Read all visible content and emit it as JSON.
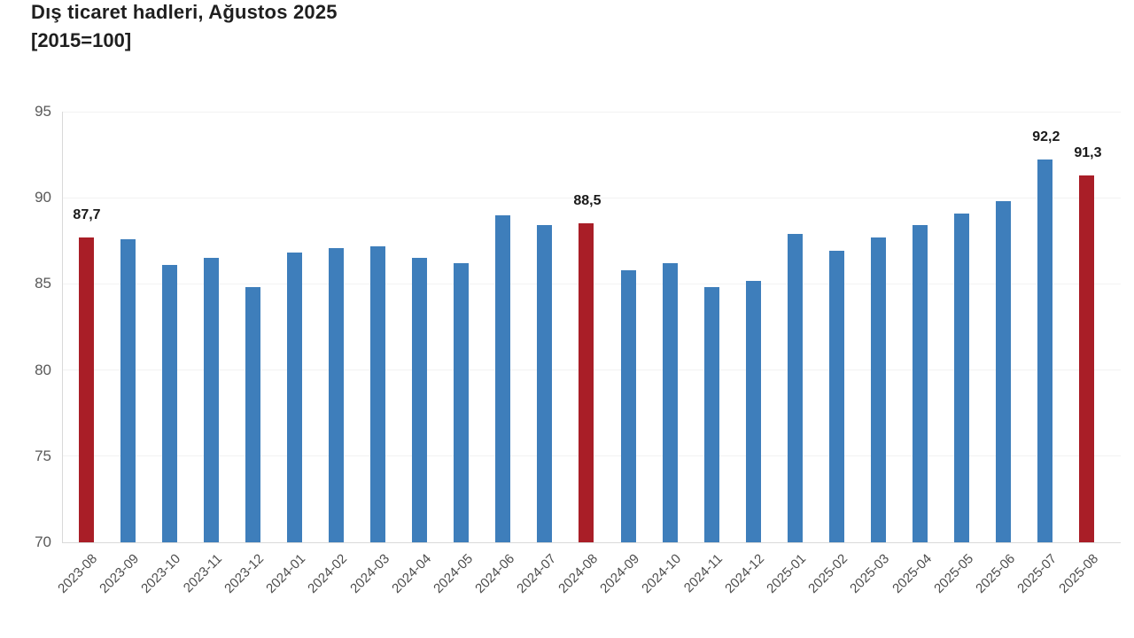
{
  "header": {
    "title": "Dış ticaret hadleri, Ağustos 2025",
    "subtitle": "[2015=100]"
  },
  "colors": {
    "bar_default": "#3E7EBB",
    "bar_highlight": "#A91E27",
    "axis_line": "#D9D9D9",
    "gridline": "#F2F2F2",
    "tick_text": "#595959",
    "xtick_text": "#4D4D4D",
    "value_label_text": "#1A1A1A",
    "title_text": "#1F1F1F",
    "background": "#FFFFFF"
  },
  "chart_data": {
    "type": "bar",
    "title": "Dış ticaret hadleri, Ağustos 2025",
    "subtitle": "[2015=100]",
    "xlabel": "",
    "ylabel": "",
    "ylim": [
      70,
      95
    ],
    "yticks": [
      70,
      75,
      80,
      85,
      90,
      95
    ],
    "grid": "faint-horizontal",
    "legend": "none",
    "x_label_rotation": -45,
    "decimal_separator": ",",
    "categories": [
      "2023-08",
      "2023-09",
      "2023-10",
      "2023-11",
      "2023-12",
      "2024-01",
      "2024-02",
      "2024-03",
      "2024-04",
      "2024-05",
      "2024-06",
      "2024-07",
      "2024-08",
      "2024-09",
      "2024-10",
      "2024-11",
      "2024-12",
      "2025-01",
      "2025-02",
      "2025-03",
      "2025-04",
      "2025-05",
      "2025-06",
      "2025-07",
      "2025-08"
    ],
    "values": [
      87.7,
      87.6,
      86.1,
      86.5,
      84.8,
      86.8,
      87.1,
      87.2,
      86.5,
      86.2,
      89.0,
      88.4,
      88.5,
      85.8,
      86.2,
      84.8,
      85.2,
      87.9,
      86.9,
      87.7,
      88.4,
      89.1,
      89.8,
      92.2,
      91.3
    ],
    "highlighted_categories": [
      "2023-08",
      "2024-08",
      "2025-08"
    ],
    "data_labels": {
      "2023-08": "87,7",
      "2024-08": "88,5",
      "2025-07": "92,2",
      "2025-08": "91,3"
    }
  }
}
